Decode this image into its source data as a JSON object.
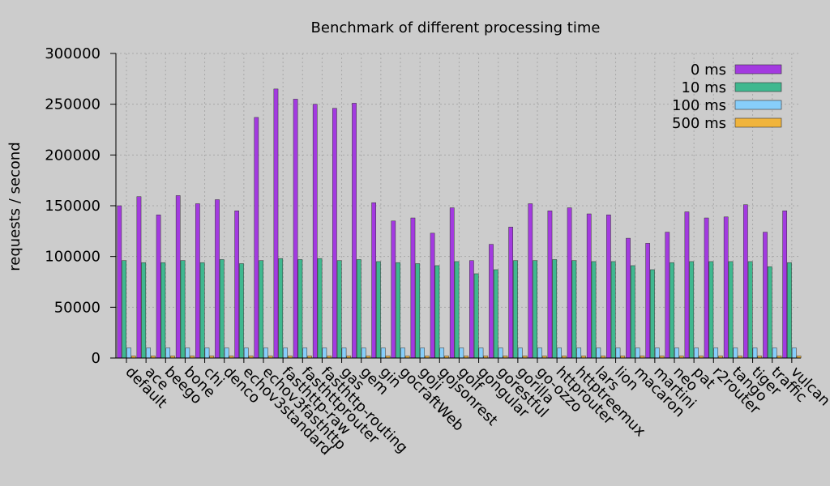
{
  "chart_data": {
    "type": "bar",
    "title": "Benchmark of different processing time",
    "xlabel": "",
    "ylabel": "requests / second",
    "ylim": [
      0,
      300000
    ],
    "yticks": [
      0,
      50000,
      100000,
      150000,
      200000,
      250000,
      300000
    ],
    "ytick_labels": [
      "0",
      "50000",
      "100000",
      "150000",
      "200000",
      "250000",
      "300000"
    ],
    "grid": true,
    "legend_position": "top-right",
    "categories": [
      "default",
      "ace",
      "beego",
      "bone",
      "chi",
      "denco",
      "echov3standard",
      "echov3fasthttp",
      "fasthttp-raw",
      "fasthttprouter",
      "fasthttp-routing",
      "gas",
      "gem",
      "gin",
      "gocraftWeb",
      "goji",
      "gojsonrest",
      "golf",
      "gongular",
      "gorestful",
      "gorilla",
      "go-ozzo",
      "httprouter",
      "httptreemux",
      "lars",
      "lion",
      "macaron",
      "martini",
      "neo",
      "pat",
      "r2router",
      "tango",
      "tiger",
      "traffic",
      "vulcan"
    ],
    "series": [
      {
        "name": "0 ms",
        "color": "#a33ae0",
        "values": [
          150000,
          159000,
          141000,
          160000,
          152000,
          156000,
          145000,
          237000,
          265000,
          255000,
          250000,
          246000,
          251000,
          153000,
          135000,
          138000,
          123000,
          148000,
          96000,
          112000,
          129000,
          152000,
          145000,
          148000,
          142000,
          141000,
          118000,
          113000,
          124000,
          144000,
          138000,
          139000,
          151000,
          124000,
          145000
        ]
      },
      {
        "name": "10 ms",
        "color": "#3fb88f",
        "values": [
          96000,
          94000,
          94000,
          96000,
          94000,
          97000,
          93000,
          96000,
          98000,
          97000,
          98000,
          96000,
          97000,
          95000,
          94000,
          93000,
          91000,
          95000,
          83000,
          87000,
          96000,
          96000,
          97000,
          96000,
          95000,
          95000,
          91000,
          87000,
          94000,
          95000,
          95000,
          95000,
          95000,
          90000,
          94000
        ]
      },
      {
        "name": "100 ms",
        "color": "#87cefa",
        "values": [
          10000,
          10000,
          10000,
          10000,
          10000,
          10000,
          10000,
          10000,
          10000,
          10000,
          10000,
          10000,
          10000,
          10000,
          10000,
          10000,
          10000,
          10000,
          10000,
          10000,
          10000,
          10000,
          10000,
          10000,
          10000,
          10000,
          10000,
          10000,
          10000,
          10000,
          10000,
          10000,
          10000,
          10000,
          10000
        ]
      },
      {
        "name": "500 ms",
        "color": "#f0b43c",
        "values": [
          2000,
          2000,
          2000,
          2000,
          2000,
          2000,
          2000,
          2000,
          2000,
          2000,
          2000,
          2000,
          2000,
          2000,
          2000,
          2000,
          2000,
          2000,
          2000,
          2000,
          2000,
          2000,
          2000,
          2000,
          2000,
          2000,
          2000,
          2000,
          2000,
          2000,
          2000,
          2000,
          2000,
          2000,
          2000
        ]
      }
    ]
  }
}
